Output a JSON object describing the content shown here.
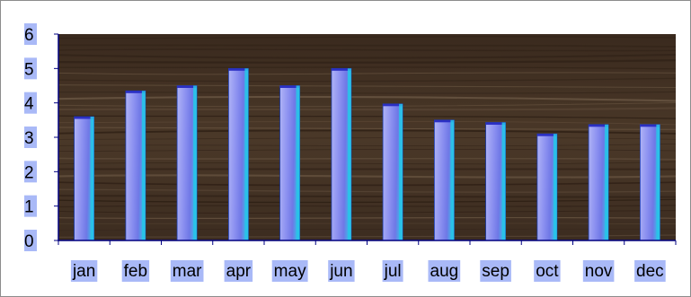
{
  "chart_data": {
    "type": "bar",
    "title": "",
    "xlabel": "",
    "ylabel": "",
    "categories": [
      "jan",
      "feb",
      "mar",
      "apr",
      "may",
      "jun",
      "jul",
      "aug",
      "sep",
      "oct",
      "nov",
      "dec"
    ],
    "values": [
      3.6,
      4.35,
      4.5,
      5.0,
      4.5,
      5.0,
      3.97,
      3.5,
      3.43,
      3.1,
      3.37,
      3.37
    ],
    "ylim": [
      0,
      6
    ],
    "yticks": [
      "0",
      "1",
      "2",
      "3",
      "4",
      "5",
      "6"
    ],
    "grid": false,
    "legend": "none",
    "colors": {
      "plot_background": "#3f2f22",
      "bar_light": "#b0b4f6",
      "bar_mid": "#6f78e6",
      "bar_edge": "#27c4e8",
      "label_highlight": "#a9b9f7",
      "axis": "#000080"
    }
  }
}
